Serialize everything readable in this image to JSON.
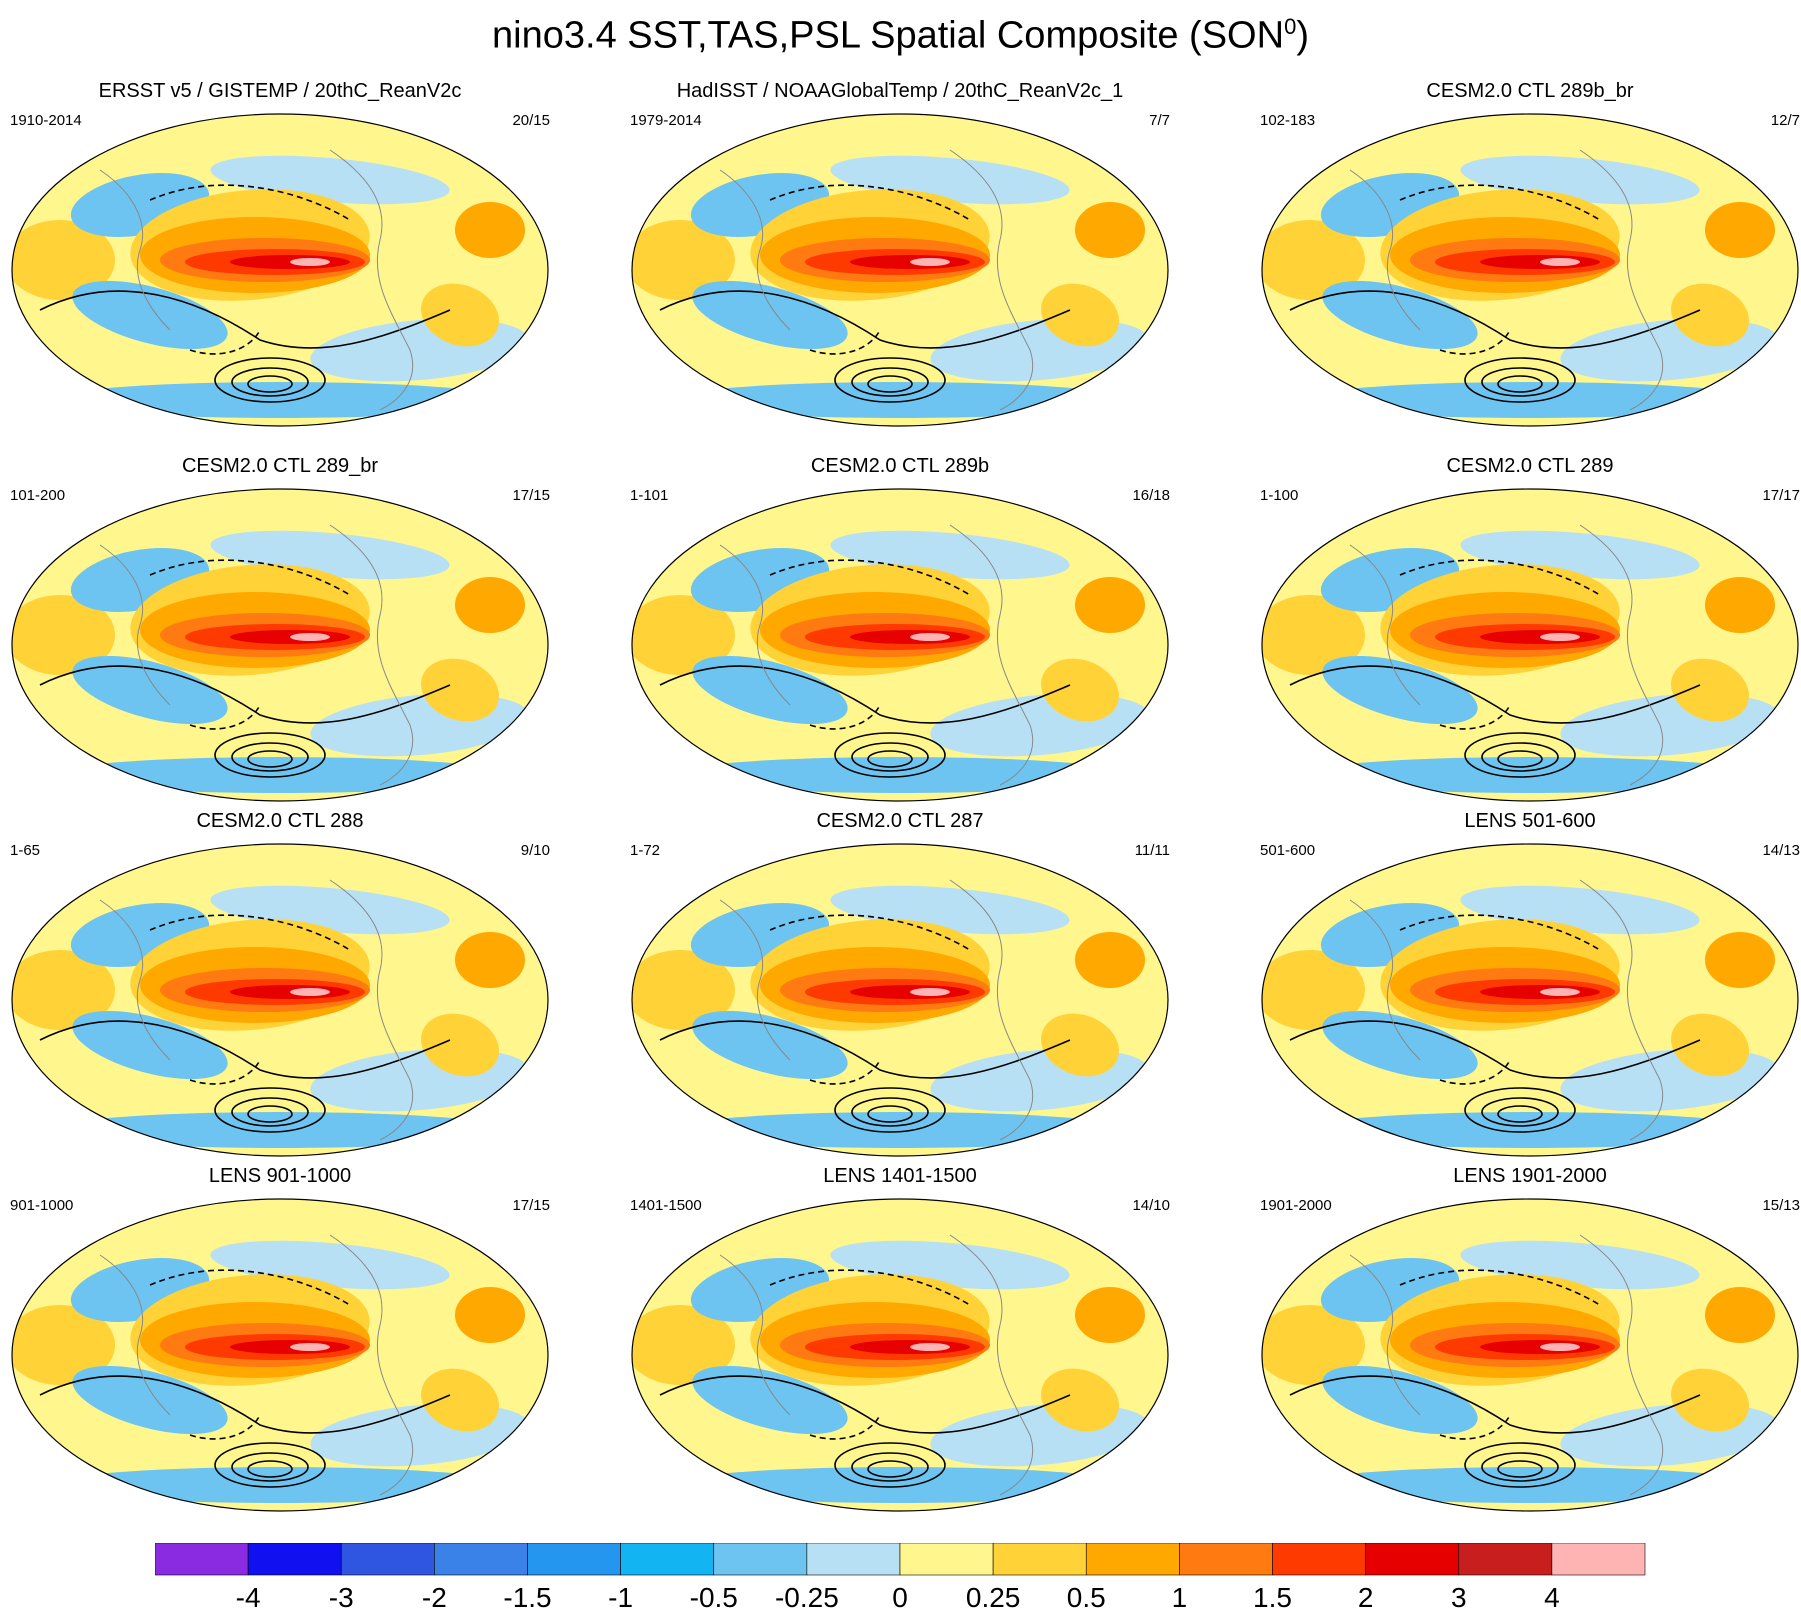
{
  "figure": {
    "title_main": "nino3.4 SST,TAS,PSL Spatial Composite (SON",
    "title_sup": "0",
    "title_end": ")"
  },
  "panels": [
    {
      "title": "ERSST v5 / GISTEMP / 20thC_ReanV2c",
      "years": "1910-2014",
      "count": "20/15"
    },
    {
      "title": "HadISST / NOAAGlobalTemp / 20thC_ReanV2c_1",
      "years": "1979-2014",
      "count": "7/7"
    },
    {
      "title": "CESM2.0 CTL 289b_br",
      "years": "102-183",
      "count": "12/7"
    },
    {
      "title": "CESM2.0 CTL 289_br",
      "years": "101-200",
      "count": "17/15"
    },
    {
      "title": "CESM2.0 CTL 289b",
      "years": "1-101",
      "count": "16/18"
    },
    {
      "title": "CESM2.0 CTL 289",
      "years": "1-100",
      "count": "17/17"
    },
    {
      "title": "CESM2.0 CTL 288",
      "years": "1-65",
      "count": "9/10"
    },
    {
      "title": "CESM2.0 CTL 287",
      "years": "1-72",
      "count": "11/11"
    },
    {
      "title": "LENS 501-600",
      "years": "501-600",
      "count": "14/13"
    },
    {
      "title": "LENS 901-1000",
      "years": "901-1000",
      "count": "17/15"
    },
    {
      "title": "LENS 1401-1500",
      "years": "1401-1500",
      "count": "14/10"
    },
    {
      "title": "LENS 1901-2000",
      "years": "1901-2000",
      "count": "15/13"
    }
  ],
  "chart_data": {
    "type": "heatmap",
    "projection": "robinson-like global map",
    "colorbar": {
      "levels": [
        "-4",
        "-3",
        "-2",
        "-1.5",
        "-1",
        "-0.5",
        "-0.25",
        "0",
        "0.25",
        "0.5",
        "1",
        "1.5",
        "2",
        "3",
        "4"
      ],
      "colors": [
        "#8a2be2",
        "#1010f0",
        "#2e56e0",
        "#3a82e8",
        "#2596f0",
        "#12b4f2",
        "#6ec4f0",
        "#b8e0f4",
        "#fff68e",
        "#ffd238",
        "#ffa800",
        "#ff7a10",
        "#ff3a00",
        "#e60000",
        "#c81e1e",
        "#ffb4b4"
      ]
    },
    "contours": "sea level pressure anomaly; solid = positive, dashed = negative",
    "panel_count": 12,
    "grid": false
  }
}
